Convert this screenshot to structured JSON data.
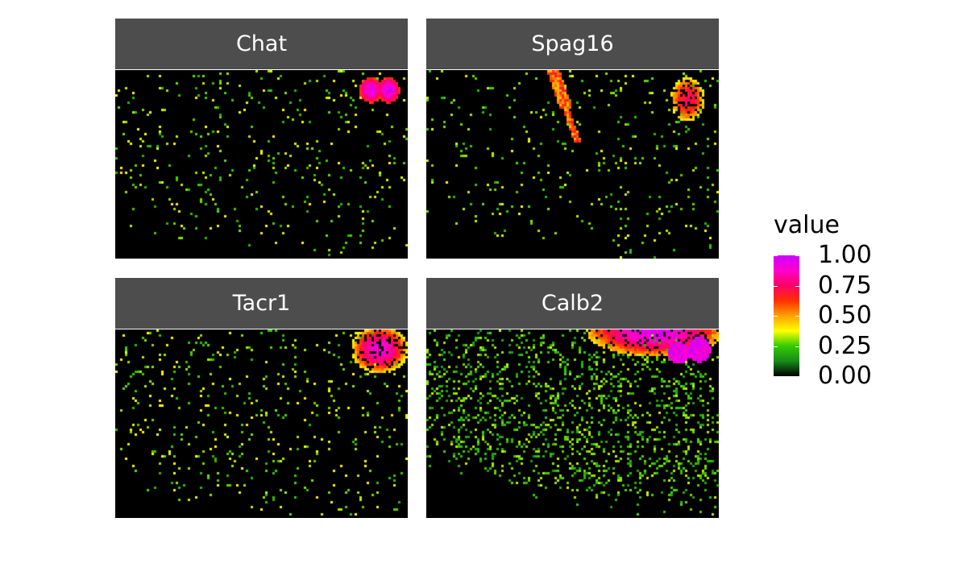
{
  "chart_data": {
    "type": "heatmap",
    "facets": [
      {
        "name": "Chat",
        "hotspots": [
          {
            "region": "top-right",
            "value": 0.85
          },
          {
            "region": "top-right",
            "value": 0.85
          }
        ]
      },
      {
        "name": "Spag16",
        "hotspots": [
          {
            "region": "top-left streak",
            "value": 0.55
          },
          {
            "region": "top-right",
            "value": 0.5
          }
        ]
      },
      {
        "name": "Tacr1",
        "hotspots": [
          {
            "region": "top-right",
            "value": 0.8
          }
        ]
      },
      {
        "name": "Calb2",
        "hotspots": [
          {
            "region": "top band",
            "value": 0.9
          },
          {
            "region": "top-right",
            "value": 1.0
          }
        ]
      }
    ],
    "legend": {
      "title": "value",
      "labels": [
        "1.00",
        "0.75",
        "0.50",
        "0.25",
        "0.00"
      ],
      "ticks": [
        1.0,
        0.75,
        0.5,
        0.25,
        0.0
      ],
      "colors": [
        "#000000",
        "#1a8a1a",
        "#33cc00",
        "#ffff00",
        "#ffa000",
        "#ff3000",
        "#ff0066",
        "#ff00cc",
        "#cc00ff"
      ],
      "placement": "right"
    },
    "grid": false,
    "axes": "none"
  }
}
